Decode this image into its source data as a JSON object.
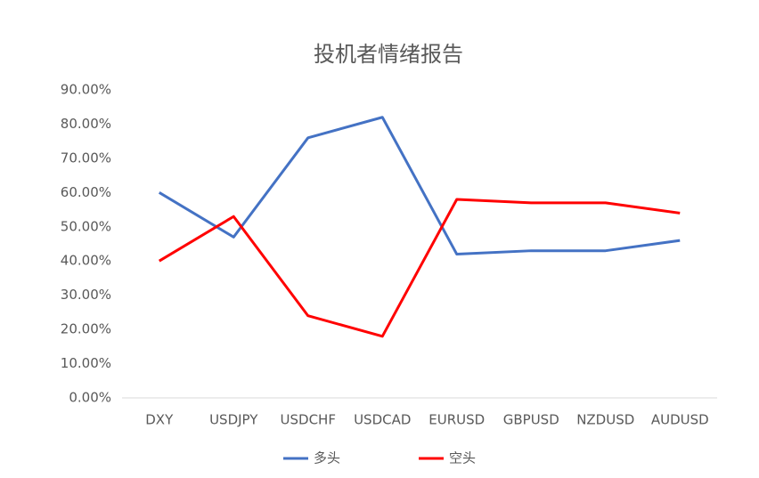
{
  "chart_data": {
    "type": "line",
    "title": "投机者情绪报告",
    "categories": [
      "DXY",
      "USDJPY",
      "USDCHF",
      "USDCAD",
      "EURUSD",
      "GBPUSD",
      "NZDUSD",
      "AUDUSD"
    ],
    "series": [
      {
        "name": "多头",
        "color": "#4472c4",
        "values": [
          60,
          47,
          76,
          82,
          42,
          43,
          43,
          46
        ]
      },
      {
        "name": "空头",
        "color": "#ff0000",
        "values": [
          40,
          53,
          24,
          18,
          58,
          57,
          57,
          54
        ]
      }
    ],
    "ylim": [
      0,
      90
    ],
    "yticks": [
      {
        "value": 0,
        "label": "0.00%"
      },
      {
        "value": 10,
        "label": "10.00%"
      },
      {
        "value": 20,
        "label": "20.00%"
      },
      {
        "value": 30,
        "label": "30.00%"
      },
      {
        "value": 40,
        "label": "40.00%"
      },
      {
        "value": 50,
        "label": "50.00%"
      },
      {
        "value": 60,
        "label": "60.00%"
      },
      {
        "value": 70,
        "label": "70.00%"
      },
      {
        "value": 80,
        "label": "80.00%"
      },
      {
        "value": 90,
        "label": "90.00%"
      }
    ],
    "grid": false,
    "legend": "bottom"
  }
}
